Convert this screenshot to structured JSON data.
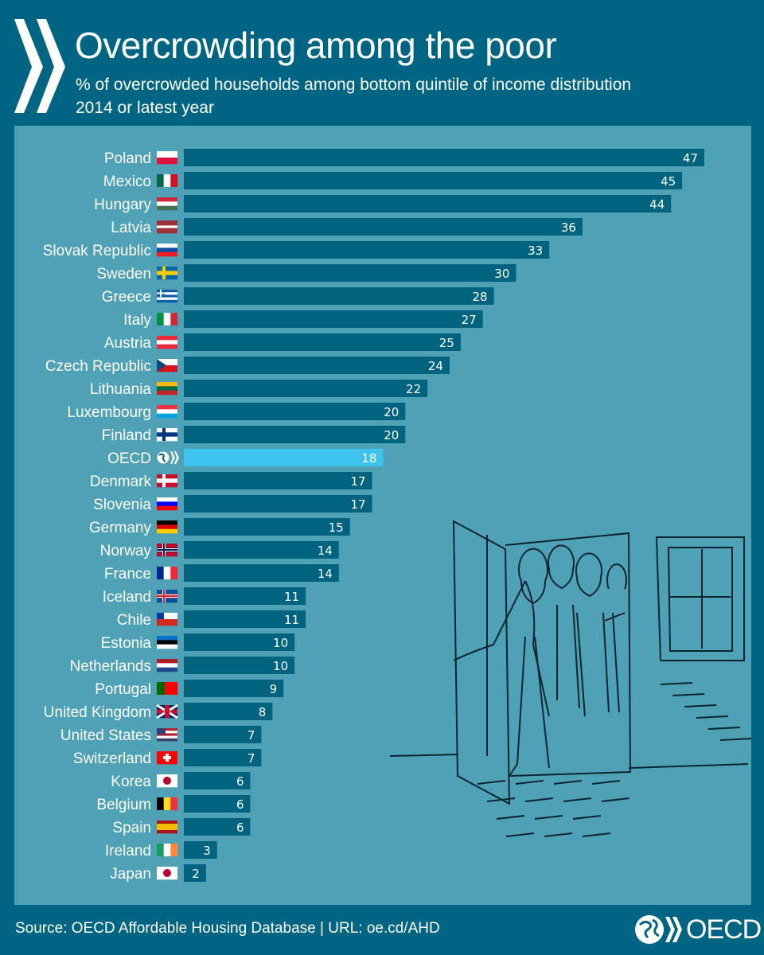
{
  "header": {
    "title": "Overcrowding among the poor",
    "subtitle": "% of overcrowded households among bottom quintile of income distribution",
    "subtitle2": "2014 or latest year"
  },
  "footer": {
    "source": "Source: OECD Affordable Housing Database | URL: oe.cd/AHD",
    "logo": "OECD"
  },
  "colors": {
    "background": "#006583",
    "panel": "#4fa1b6",
    "bar": "#00637f",
    "highlight": "#3ec3ef"
  },
  "chart_data": {
    "type": "bar",
    "orientation": "horizontal",
    "title": "Overcrowding among the poor",
    "xlim": [
      0,
      47
    ],
    "grid": false,
    "highlight": "OECD",
    "categories": [
      "Poland",
      "Mexico",
      "Hungary",
      "Latvia",
      "Slovak Republic",
      "Sweden",
      "Greece",
      "Italy",
      "Austria",
      "Czech Republic",
      "Lithuania",
      "Luxembourg",
      "Finland",
      "OECD",
      "Denmark",
      "Slovenia",
      "Germany",
      "Norway",
      "France",
      "Iceland",
      "Chile",
      "Estonia",
      "Netherlands",
      "Portugal",
      "United Kingdom",
      "United States",
      "Switzerland",
      "Korea",
      "Belgium",
      "Spain",
      "Ireland",
      "Japan"
    ],
    "values": [
      47,
      45,
      44,
      36,
      33,
      30,
      28,
      27,
      25,
      24,
      22,
      20,
      20,
      18,
      17,
      17,
      15,
      14,
      14,
      11,
      11,
      10,
      10,
      9,
      8,
      7,
      7,
      6,
      6,
      6,
      3,
      2
    ],
    "flags": [
      {
        "d": "h",
        "c": [
          "#ffffff",
          "#dc143c"
        ]
      },
      {
        "d": "v",
        "c": [
          "#006847",
          "#ffffff",
          "#ce1126"
        ]
      },
      {
        "d": "h",
        "c": [
          "#ce2939",
          "#ffffff",
          "#477050"
        ]
      },
      {
        "d": "h",
        "c": [
          "#9e3039",
          "#9e3039",
          "#ffffff",
          "#9e3039",
          "#9e3039"
        ]
      },
      {
        "d": "h",
        "c": [
          "#ffffff",
          "#0b4ea2",
          "#ee1c25"
        ]
      },
      {
        "d": "h",
        "c": [
          "#006aa7",
          "#fecc00",
          "#006aa7"
        ]
      },
      {
        "d": "h",
        "c": [
          "#0d5eaf",
          "#ffffff",
          "#0d5eaf",
          "#ffffff",
          "#0d5eaf"
        ]
      },
      {
        "d": "v",
        "c": [
          "#009246",
          "#ffffff",
          "#ce2b37"
        ]
      },
      {
        "d": "h",
        "c": [
          "#ed2939",
          "#ffffff",
          "#ed2939"
        ]
      },
      {
        "d": "h",
        "c": [
          "#ffffff",
          "#d7141a"
        ]
      },
      {
        "d": "h",
        "c": [
          "#fdb913",
          "#006a44",
          "#c1272d"
        ]
      },
      {
        "d": "h",
        "c": [
          "#ef3340",
          "#ffffff",
          "#00a3e0"
        ]
      },
      {
        "d": "h",
        "c": [
          "#ffffff",
          "#003580",
          "#ffffff"
        ]
      },
      {
        "d": "o",
        "c": [
          "#ffffff"
        ]
      },
      {
        "d": "h",
        "c": [
          "#c8102e",
          "#ffffff",
          "#c8102e"
        ]
      },
      {
        "d": "h",
        "c": [
          "#ffffff",
          "#0000ff",
          "#ff0000"
        ]
      },
      {
        "d": "h",
        "c": [
          "#000000",
          "#dd0000",
          "#ffce00"
        ]
      },
      {
        "d": "h",
        "c": [
          "#ba0c2f",
          "#00205b",
          "#ba0c2f"
        ]
      },
      {
        "d": "v",
        "c": [
          "#002395",
          "#ffffff",
          "#ed2939"
        ]
      },
      {
        "d": "h",
        "c": [
          "#02529c",
          "#dc1e35",
          "#02529c"
        ]
      },
      {
        "d": "h",
        "c": [
          "#ffffff",
          "#d52b1e"
        ]
      },
      {
        "d": "h",
        "c": [
          "#0072ce",
          "#000000",
          "#ffffff"
        ]
      },
      {
        "d": "h",
        "c": [
          "#ae1c28",
          "#ffffff",
          "#21468b"
        ]
      },
      {
        "d": "v",
        "c": [
          "#006600",
          "#ff0000",
          "#ff0000"
        ]
      },
      {
        "d": "h",
        "c": [
          "#012169",
          "#c8102e",
          "#012169"
        ]
      },
      {
        "d": "h",
        "c": [
          "#b22234",
          "#ffffff",
          "#b22234",
          "#ffffff",
          "#3c3b6e"
        ]
      },
      {
        "d": "h",
        "c": [
          "#ff0000"
        ]
      },
      {
        "d": "h",
        "c": [
          "#ffffff"
        ]
      },
      {
        "d": "v",
        "c": [
          "#000000",
          "#fdda24",
          "#ef3340"
        ]
      },
      {
        "d": "h",
        "c": [
          "#aa151b",
          "#f1bf00",
          "#f1bf00",
          "#aa151b"
        ]
      },
      {
        "d": "v",
        "c": [
          "#169b62",
          "#ffffff",
          "#ff883e"
        ]
      },
      {
        "d": "h",
        "c": [
          "#ffffff"
        ]
      }
    ]
  }
}
